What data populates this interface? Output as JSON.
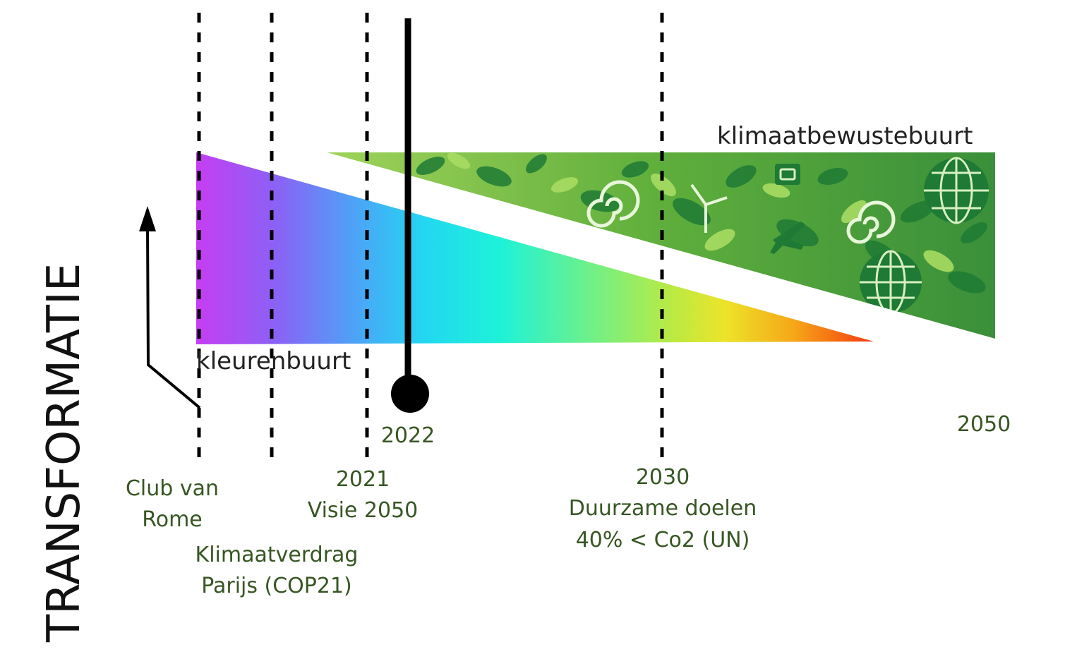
{
  "axis_label": "TRANSFORMATIE",
  "regions": {
    "colored": "kleurenbuurt",
    "climate": "klimaatbewustebuurt"
  },
  "current_marker": {
    "year": "2022"
  },
  "end_year": "2050",
  "milestones": {
    "club_van_rome": {
      "line1": "Club van",
      "line2": "Rome"
    },
    "klimaatverdrag": {
      "line1": "Klimaatverdrag",
      "line2": "Parijs (COP21)"
    },
    "visie_2050": {
      "year": "2021",
      "line2": "Visie 2050"
    },
    "duurzame_doelen": {
      "year": "2030",
      "line2": "Duurzame doelen",
      "line3": "40% < Co2 (UN)"
    }
  },
  "colors": {
    "label_green": "#375623",
    "line_black": "#000000",
    "gradient": [
      "#c040f0",
      "#7a6cf6",
      "#32c4f8",
      "#1af0e2",
      "#4ff0a0",
      "#a8ec50",
      "#f0e028",
      "#f7a018",
      "#f53c10"
    ],
    "leaf_light": "#8ccd4a",
    "leaf_dark": "#1e7a34"
  }
}
